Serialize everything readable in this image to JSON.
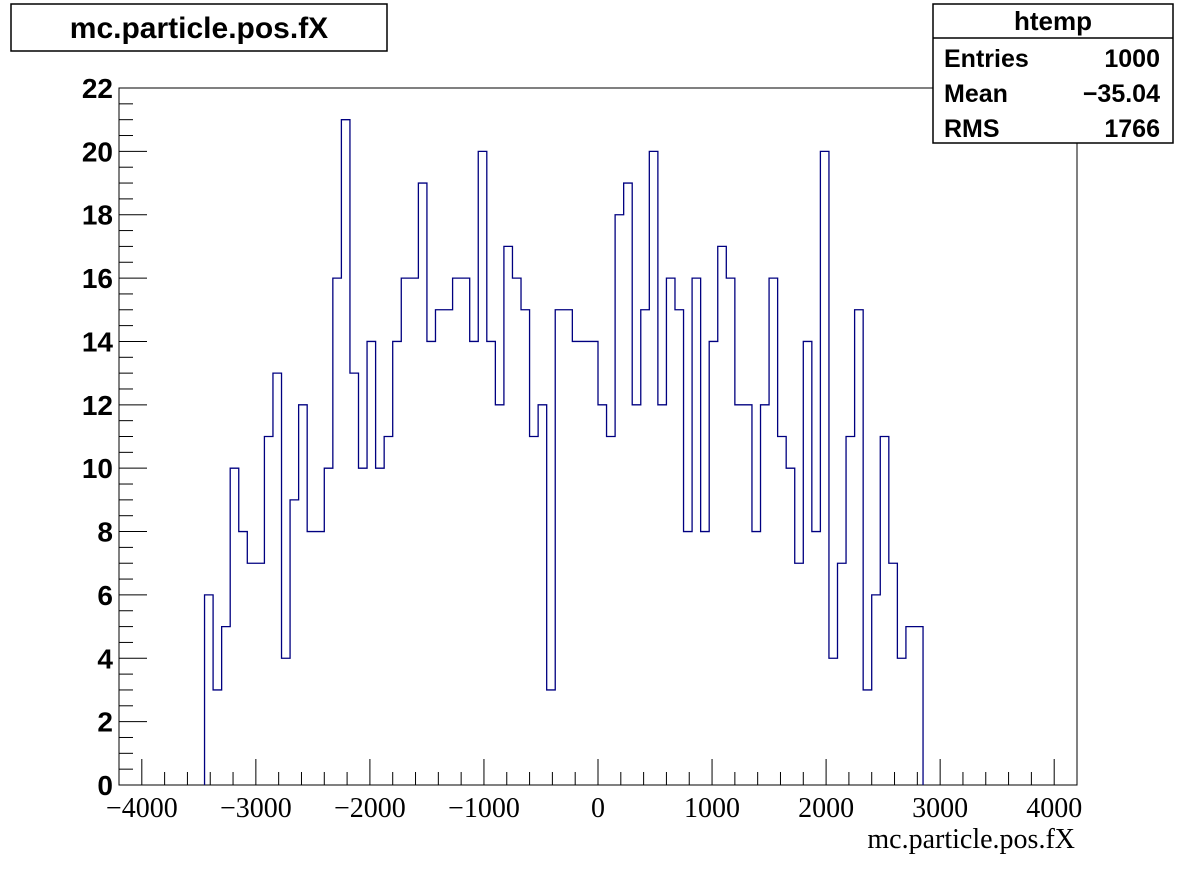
{
  "title": "mc.particle.pos.fX",
  "stats": {
    "name": "htemp",
    "rows": [
      {
        "label": "Entries",
        "value": "1000"
      },
      {
        "label": "Mean",
        "value": "−35.04"
      },
      {
        "label": "RMS",
        "value": "1766"
      }
    ]
  },
  "colors": {
    "histogram_line": "#000080",
    "axis": "#000000"
  },
  "chart_data": {
    "type": "histogram",
    "title": "mc.particle.pos.fX",
    "xlabel": "mc.particle.pos.fX",
    "ylabel": "",
    "xlim": [
      -4200,
      4200
    ],
    "ylim": [
      0,
      22
    ],
    "x_ticks": [
      -4000,
      -3000,
      -2000,
      -1000,
      0,
      1000,
      2000,
      3000,
      4000
    ],
    "x_tick_labels": [
      "−4000",
      "−3000",
      "−2000",
      "−1000",
      "0",
      "1000",
      "2000",
      "3000",
      "4000"
    ],
    "y_ticks": [
      0,
      2,
      4,
      6,
      8,
      10,
      12,
      14,
      16,
      18,
      20,
      22
    ],
    "y_tick_labels": [
      "0",
      "2",
      "4",
      "6",
      "8",
      "10",
      "12",
      "14",
      "16",
      "18",
      "20",
      "22"
    ],
    "bin_start": -3450,
    "bin_width": 75,
    "counts": [
      6,
      3,
      5,
      10,
      8,
      7,
      7,
      11,
      13,
      4,
      9,
      12,
      8,
      8,
      10,
      16,
      21,
      13,
      10,
      14,
      10,
      11,
      14,
      16,
      16,
      19,
      14,
      15,
      15,
      16,
      16,
      14,
      20,
      14,
      12,
      17,
      16,
      15,
      11,
      12,
      3,
      15,
      15,
      14,
      14,
      14,
      12,
      11,
      18,
      19,
      12,
      15,
      20,
      12,
      16,
      15,
      8,
      16,
      8,
      14,
      17,
      16,
      12,
      12,
      8,
      12,
      16,
      11,
      10,
      7,
      14,
      8,
      20,
      4,
      7,
      11,
      15,
      3,
      6,
      11,
      7,
      4,
      5,
      5
    ],
    "grid": false,
    "legend": "none"
  }
}
